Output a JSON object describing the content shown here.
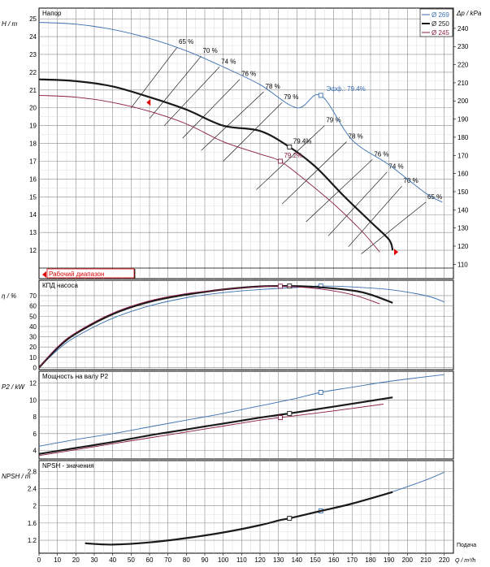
{
  "colors": {
    "d269": "#3a6fb0",
    "d250": "#1a1a1a",
    "d245": "#8b1a4a",
    "grid": "#999999",
    "range": "#e00000"
  },
  "chart_data": [
    {
      "type": "line",
      "panel": "head",
      "title": "Напор",
      "ylabel": "H / m",
      "ylabel_right": "Δp / kPa",
      "xlim": [
        0,
        225
      ],
      "ylim": [
        11,
        25.6
      ],
      "yticks": [
        12,
        13,
        14,
        15,
        16,
        17,
        18,
        19,
        20,
        21,
        22,
        23,
        24,
        25
      ],
      "y2ticks": [
        110,
        120,
        130,
        140,
        150,
        160,
        170,
        180,
        190,
        200,
        210,
        220,
        230,
        240
      ],
      "legend": [
        "Ø 269",
        "Ø 250",
        "Ø 245"
      ],
      "legend_position": "top-right",
      "range_label": "Рабочий диапазон",
      "series": [
        {
          "name": "Ø 269",
          "color": "d269",
          "width": 0.9,
          "x": [
            0,
            20,
            40,
            60,
            80,
            100,
            120,
            140,
            153,
            170,
            190,
            210,
            219
          ],
          "y": [
            24.8,
            24.7,
            24.4,
            23.9,
            23.2,
            22.3,
            21.3,
            20.0,
            20.7,
            18.2,
            16.8,
            15.2,
            14.7
          ]
        },
        {
          "name": "Ø 250",
          "color": "d250",
          "width": 2.2,
          "x": [
            0,
            20,
            40,
            60,
            80,
            100,
            120,
            136,
            150,
            165,
            180,
            190,
            192
          ],
          "y": [
            21.6,
            21.5,
            21.2,
            20.6,
            19.9,
            19.0,
            18.7,
            17.8,
            16.7,
            15.1,
            13.6,
            12.6,
            12.0
          ]
        },
        {
          "name": "Ø 245",
          "color": "d245",
          "width": 0.9,
          "x": [
            0,
            20,
            40,
            60,
            80,
            100,
            120,
            131,
            145,
            160,
            175,
            185
          ],
          "y": [
            20.7,
            20.6,
            20.3,
            19.8,
            19.1,
            18.1,
            17.4,
            17.0,
            15.9,
            14.6,
            13.1,
            11.9
          ]
        }
      ],
      "iso_labels": [
        "65 %",
        "70 %",
        "74 %",
        "76 %",
        "78 %",
        "79 %",
        "79 %",
        "78 %",
        "76 %",
        "74 %",
        "70 %",
        "65 %"
      ],
      "bep_labels": [
        "Эфф.: 79.4%",
        "79.4%",
        "79.2%"
      ]
    },
    {
      "type": "line",
      "panel": "efficiency",
      "title": "КПД насоса",
      "ylabel": "η / %",
      "xlim": [
        0,
        225
      ],
      "ylim": [
        -2,
        85
      ],
      "yticks": [
        0,
        10,
        20,
        30,
        40,
        50,
        60,
        70
      ],
      "series": [
        {
          "name": "Ø 269",
          "color": "d269",
          "width": 0.9,
          "x": [
            0,
            10,
            20,
            40,
            60,
            80,
            100,
            120,
            140,
            153,
            170,
            190,
            210,
            220
          ],
          "y": [
            0,
            17,
            30,
            48,
            60,
            68,
            73,
            76,
            78,
            79.4,
            78.5,
            76,
            70,
            64
          ]
        },
        {
          "name": "Ø 250",
          "color": "d250",
          "width": 2.2,
          "x": [
            0,
            10,
            20,
            40,
            60,
            80,
            100,
            120,
            136,
            150,
            170,
            180,
            192
          ],
          "y": [
            0,
            19,
            33,
            52,
            64,
            71,
            76,
            79,
            79.4,
            78.5,
            75,
            71,
            63
          ]
        },
        {
          "name": "Ø 245",
          "color": "d245",
          "width": 0.9,
          "x": [
            0,
            10,
            20,
            40,
            60,
            80,
            100,
            120,
            131,
            150,
            170,
            185
          ],
          "y": [
            0,
            20,
            34,
            53,
            65,
            72,
            76,
            78.8,
            79.2,
            77,
            71,
            62
          ]
        }
      ]
    },
    {
      "type": "line",
      "panel": "power",
      "title": "Мощность на валу P2",
      "ylabel": "P2 / kW",
      "xlim": [
        0,
        225
      ],
      "ylim": [
        3,
        13.4
      ],
      "yticks": [
        4,
        6,
        8,
        10,
        12
      ],
      "series": [
        {
          "name": "Ø 269",
          "color": "d269",
          "width": 0.9,
          "x": [
            0,
            20,
            40,
            60,
            80,
            100,
            120,
            140,
            153,
            170,
            190,
            220
          ],
          "y": [
            4.5,
            5.3,
            6.0,
            6.8,
            7.6,
            8.4,
            9.3,
            10.2,
            10.9,
            11.5,
            12.2,
            13.0
          ]
        },
        {
          "name": "Ø 250",
          "color": "d250",
          "width": 2.2,
          "x": [
            0,
            20,
            40,
            60,
            80,
            100,
            120,
            136,
            160,
            192
          ],
          "y": [
            3.6,
            4.3,
            5.0,
            5.8,
            6.5,
            7.2,
            7.9,
            8.4,
            9.2,
            10.3
          ]
        },
        {
          "name": "Ø 245",
          "color": "d245",
          "width": 0.9,
          "x": [
            0,
            20,
            40,
            60,
            80,
            100,
            120,
            131,
            160,
            187
          ],
          "y": [
            3.4,
            4.1,
            4.8,
            5.5,
            6.2,
            6.9,
            7.6,
            7.9,
            8.7,
            9.5
          ]
        }
      ]
    },
    {
      "type": "line",
      "panel": "npsh",
      "title": "NPSH - значения",
      "ylabel": "NPSH / m",
      "xlabel": "Q / m³/h",
      "xlabel_right": "Подача",
      "xlim": [
        0,
        225
      ],
      "xticks": [
        0,
        10,
        20,
        30,
        40,
        50,
        60,
        70,
        80,
        90,
        100,
        110,
        120,
        130,
        140,
        150,
        160,
        170,
        180,
        190,
        200,
        210,
        220
      ],
      "ylim": [
        0.9,
        3.05
      ],
      "yticks": [
        1.2,
        1.6,
        2,
        2.4,
        2.8
      ],
      "series": [
        {
          "name": "Ø 269",
          "color": "d269",
          "width": 0.9,
          "x": [
            25,
            40,
            60,
            80,
            100,
            120,
            131,
            136,
            153,
            170,
            190,
            210,
            220
          ],
          "y": [
            1.13,
            1.1,
            1.15,
            1.25,
            1.38,
            1.55,
            1.67,
            1.71,
            1.88,
            2.05,
            2.3,
            2.6,
            2.78
          ]
        },
        {
          "name": "Ø 250",
          "color": "d250",
          "width": 2.2,
          "x": [
            25,
            40,
            60,
            80,
            100,
            120,
            131,
            136,
            153,
            170,
            192
          ],
          "y": [
            1.13,
            1.1,
            1.15,
            1.25,
            1.38,
            1.55,
            1.67,
            1.71,
            1.88,
            2.05,
            2.32
          ]
        }
      ]
    }
  ]
}
